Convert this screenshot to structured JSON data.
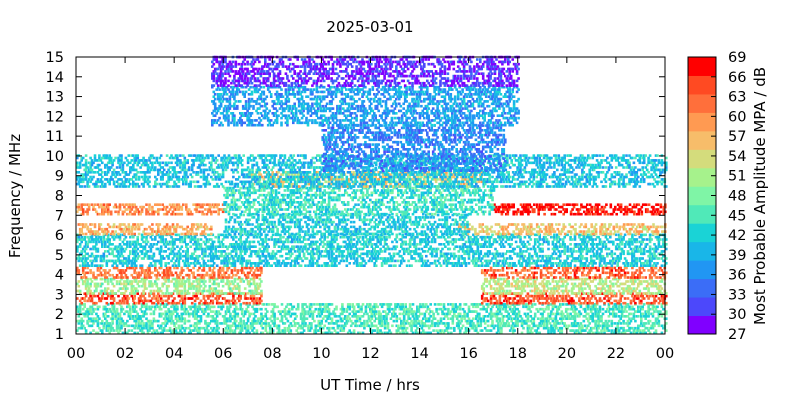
{
  "chart_data": {
    "type": "heatmap",
    "title": "2025-03-01",
    "xlabel": "UT Time / hrs",
    "ylabel": "Frequency / MHz",
    "colorbar_label": "Most Probable Amplitude MPA / dB",
    "xlim": [
      0,
      24
    ],
    "ylim": [
      1,
      15
    ],
    "xticks": [
      "00",
      "02",
      "04",
      "06",
      "08",
      "10",
      "12",
      "14",
      "16",
      "18",
      "20",
      "22",
      "00"
    ],
    "yticks": [
      "1",
      "2",
      "3",
      "4",
      "5",
      "6",
      "7",
      "8",
      "9",
      "10",
      "11",
      "12",
      "13",
      "14",
      "15"
    ],
    "colorbar_range": [
      27,
      69
    ],
    "colorbar_ticks": [
      "27",
      "30",
      "33",
      "36",
      "39",
      "42",
      "45",
      "48",
      "51",
      "54",
      "57",
      "60",
      "63",
      "66",
      "69"
    ],
    "colorbar_colors": [
      "#8000ff",
      "#4c48fb",
      "#3b6df7",
      "#2196f3",
      "#19b6e8",
      "#1ad3d6",
      "#50e9b8",
      "#7ff5a6",
      "#a6f28c",
      "#d4dc7c",
      "#f7bd6a",
      "#ff9a52",
      "#ff6f3b",
      "#ff4a22",
      "#ff0000"
    ],
    "grid": false,
    "legend": "none",
    "ionogram_bands": [
      {
        "t_start": 0.0,
        "t_end": 24.0,
        "f_low": 1.0,
        "f_high": 2.5,
        "amplitude_db": 45
      },
      {
        "t_start": 0.0,
        "t_end": 7.5,
        "f_low": 2.5,
        "f_high": 3.0,
        "amplitude_db": 64
      },
      {
        "t_start": 16.5,
        "t_end": 24.0,
        "f_low": 2.5,
        "f_high": 3.0,
        "amplitude_db": 64
      },
      {
        "t_start": 0.0,
        "t_end": 7.5,
        "f_low": 3.0,
        "f_high": 3.8,
        "amplitude_db": 50
      },
      {
        "t_start": 16.5,
        "t_end": 24.0,
        "f_low": 3.0,
        "f_high": 3.8,
        "amplitude_db": 52
      },
      {
        "t_start": 0.0,
        "t_end": 7.5,
        "f_low": 3.8,
        "f_high": 4.4,
        "amplitude_db": 62
      },
      {
        "t_start": 16.5,
        "t_end": 24.0,
        "f_low": 3.8,
        "f_high": 4.4,
        "amplitude_db": 63
      },
      {
        "t_start": 0.0,
        "t_end": 24.0,
        "f_low": 4.4,
        "f_high": 6.0,
        "amplitude_db": 42
      },
      {
        "t_start": 0.0,
        "t_end": 5.5,
        "f_low": 6.0,
        "f_high": 6.5,
        "amplitude_db": 58
      },
      {
        "t_start": 15.5,
        "t_end": 24.0,
        "f_low": 6.0,
        "f_high": 6.5,
        "amplitude_db": 56
      },
      {
        "t_start": 6.0,
        "t_end": 16.0,
        "f_low": 6.0,
        "f_high": 7.0,
        "amplitude_db": 42
      },
      {
        "t_start": 0.0,
        "t_end": 6.0,
        "f_low": 7.0,
        "f_high": 7.6,
        "amplitude_db": 60
      },
      {
        "t_start": 17.0,
        "t_end": 24.0,
        "f_low": 7.0,
        "f_high": 7.5,
        "amplitude_db": 68
      },
      {
        "t_start": 6.0,
        "t_end": 17.0,
        "f_low": 7.0,
        "f_high": 8.4,
        "amplitude_db": 44
      },
      {
        "t_start": 7.0,
        "t_end": 16.5,
        "f_low": 8.4,
        "f_high": 9.2,
        "amplitude_db": 55
      },
      {
        "t_start": 0.0,
        "t_end": 24.0,
        "f_low": 8.4,
        "f_high": 10.0,
        "amplitude_db": 41
      },
      {
        "t_start": 10.0,
        "t_end": 17.5,
        "f_low": 9.2,
        "f_high": 11.5,
        "amplitude_db": 36
      },
      {
        "t_start": 5.5,
        "t_end": 18.0,
        "f_low": 11.5,
        "f_high": 13.5,
        "amplitude_db": 38
      },
      {
        "t_start": 5.5,
        "t_end": 18.0,
        "f_low": 13.5,
        "f_high": 15.0,
        "amplitude_db": 30
      }
    ]
  }
}
